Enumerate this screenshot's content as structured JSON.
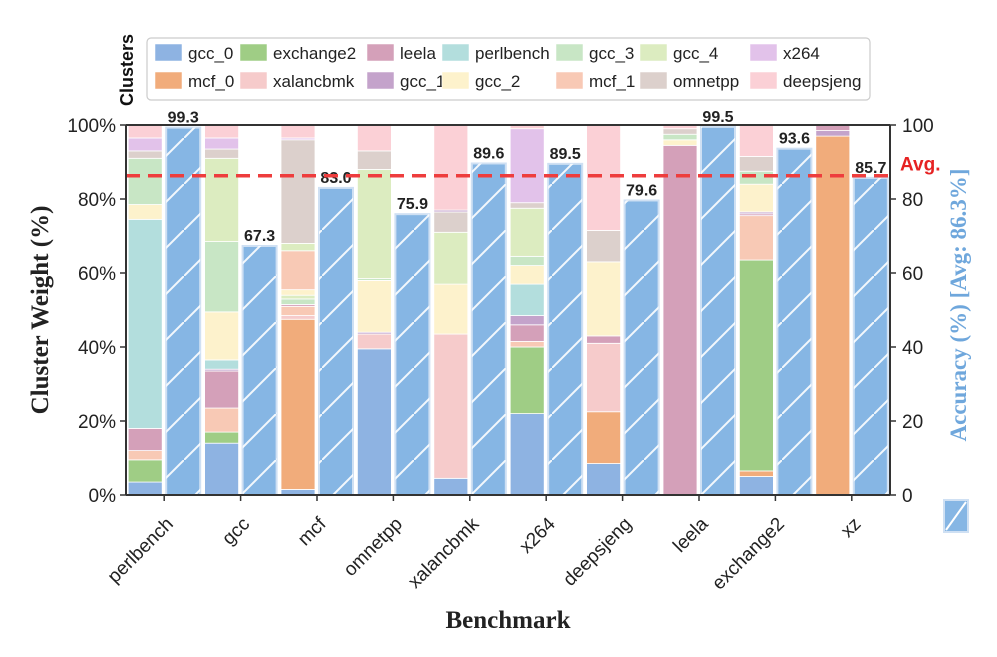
{
  "chart_data": {
    "type": "bar",
    "legend_title": "Clusters",
    "legend_position": "top",
    "xlabel": "Benchmark",
    "ylabel": "Cluster Weight (%)",
    "y2label": "Accuracy (%) [Avg: 86.3%]",
    "avg_label": "Avg.",
    "avg_value": 86.3,
    "ylim": [
      0,
      100
    ],
    "y2lim": [
      0,
      100
    ],
    "yticks": [
      "0%",
      "20%",
      "40%",
      "60%",
      "80%",
      "100%"
    ],
    "y2ticks": [
      "0",
      "20",
      "40",
      "60",
      "80",
      "100"
    ],
    "categories": [
      "perlbench",
      "gcc",
      "mcf",
      "omnetpp",
      "xalancbmk",
      "x264",
      "deepsjeng",
      "leela",
      "exchange2",
      "xz"
    ],
    "accuracy": [
      99.3,
      67.3,
      83.0,
      75.9,
      89.6,
      89.5,
      79.6,
      99.5,
      93.6,
      85.7
    ],
    "accuracy_labels": [
      "99.3",
      "67.3",
      "83.0",
      "75.9",
      "89.6",
      "89.5",
      "79.6",
      "99.5",
      "93.6",
      "85.7"
    ],
    "legend_items": [
      {
        "name": "gcc_0",
        "key": "gcc_0"
      },
      {
        "name": "exchange2",
        "key": "exchange2"
      },
      {
        "name": "leela",
        "key": "leela"
      },
      {
        "name": "perlbench",
        "key": "perlbench"
      },
      {
        "name": "gcc_3",
        "key": "gcc_3"
      },
      {
        "name": "gcc_4",
        "key": "gcc_4"
      },
      {
        "name": "x264",
        "key": "x264"
      },
      {
        "name": "mcf_0",
        "key": "mcf_0"
      },
      {
        "name": "xalancbmk",
        "key": "xalancbmk"
      },
      {
        "name": "gcc_1",
        "key": "gcc_1"
      },
      {
        "name": "gcc_2",
        "key": "gcc_2"
      },
      {
        "name": "mcf_1",
        "key": "mcf_1"
      },
      {
        "name": "omnetpp",
        "key": "omnetpp"
      },
      {
        "name": "deepsjeng",
        "key": "deepsjeng"
      }
    ],
    "colors": {
      "gcc_0": "#8eb3e2",
      "exchange2": "#9fcd85",
      "leela": "#d4a0b9",
      "perlbench": "#b3dedd",
      "gcc_3": "#c8e6c5",
      "gcc_4": "#dcecc0",
      "x264": "#e2c2ea",
      "mcf_0": "#f1ac7b",
      "xalancbmk": "#f6cbcb",
      "gcc_1": "#c4a3cb",
      "gcc_2": "#fdf2cc",
      "mcf_1": "#f8c9b5",
      "omnetpp": "#dcd0cc",
      "deepsjeng": "#fbd0d6",
      "accuracy": "#86b6e4",
      "avg_line": "#ee3d3d"
    },
    "series": [
      {
        "benchmark": "perlbench",
        "segments": [
          [
            "gcc_0",
            3.5
          ],
          [
            "exchange2",
            6
          ],
          [
            "mcf_1",
            2.5
          ],
          [
            "leela",
            6
          ],
          [
            "perlbench",
            56.5
          ],
          [
            "gcc_2",
            4
          ],
          [
            "gcc_3",
            12.5
          ],
          [
            "omnetpp",
            2
          ],
          [
            "x264",
            3.5
          ],
          [
            "deepsjeng",
            3.5
          ]
        ]
      },
      {
        "benchmark": "gcc",
        "segments": [
          [
            "gcc_0",
            14
          ],
          [
            "exchange2",
            3
          ],
          [
            "mcf_1",
            6.5
          ],
          [
            "leela",
            10
          ],
          [
            "gcc_1",
            0.5
          ],
          [
            "perlbench",
            2.5
          ],
          [
            "gcc_2",
            13
          ],
          [
            "gcc_3",
            19
          ],
          [
            "gcc_4",
            22.5
          ],
          [
            "omnetpp",
            2.5
          ],
          [
            "x264",
            3
          ],
          [
            "deepsjeng",
            3.5
          ]
        ]
      },
      {
        "benchmark": "mcf",
        "segments": [
          [
            "gcc_0",
            1.5
          ],
          [
            "mcf_0",
            46
          ],
          [
            "xalancbmk",
            1
          ],
          [
            "mcf_1",
            2.5
          ],
          [
            "leela",
            0.5
          ],
          [
            "gcc_3",
            1.5
          ],
          [
            "gcc_4",
            1
          ],
          [
            "gcc_2",
            1.5
          ],
          [
            "mcf_1",
            10.5
          ],
          [
            "gcc_4",
            2
          ],
          [
            "omnetpp",
            28
          ],
          [
            "x264",
            0.5
          ],
          [
            "deepsjeng",
            3.5
          ]
        ]
      },
      {
        "benchmark": "omnetpp",
        "segments": [
          [
            "gcc_0",
            39.5
          ],
          [
            "xalancbmk",
            4
          ],
          [
            "gcc_1",
            0.5
          ],
          [
            "gcc_2",
            14
          ],
          [
            "gcc_3",
            0.5
          ],
          [
            "gcc_4",
            29.5
          ],
          [
            "omnetpp",
            5
          ],
          [
            "deepsjeng",
            7
          ]
        ]
      },
      {
        "benchmark": "xalancbmk",
        "segments": [
          [
            "gcc_0",
            4.5
          ],
          [
            "xalancbmk",
            39
          ],
          [
            "gcc_2",
            13.5
          ],
          [
            "gcc_4",
            14
          ],
          [
            "omnetpp",
            5.5
          ],
          [
            "gcc_1",
            0.5
          ],
          [
            "deepsjeng",
            23
          ]
        ]
      },
      {
        "benchmark": "x264",
        "segments": [
          [
            "gcc_0",
            22
          ],
          [
            "exchange2",
            18
          ],
          [
            "mcf_1",
            1.5
          ],
          [
            "leela",
            4.5
          ],
          [
            "gcc_1",
            2.5
          ],
          [
            "perlbench",
            8.5
          ],
          [
            "gcc_2",
            5
          ],
          [
            "gcc_3",
            2.5
          ],
          [
            "gcc_4",
            13
          ],
          [
            "omnetpp",
            1.5
          ],
          [
            "x264",
            20
          ],
          [
            "deepsjeng",
            1
          ]
        ]
      },
      {
        "benchmark": "deepsjeng",
        "segments": [
          [
            "gcc_0",
            8.5
          ],
          [
            "mcf_0",
            14
          ],
          [
            "xalancbmk",
            18.5
          ],
          [
            "leela",
            2
          ],
          [
            "gcc_2",
            20
          ],
          [
            "omnetpp",
            8.5
          ],
          [
            "deepsjeng",
            28.5
          ]
        ]
      },
      {
        "benchmark": "leela",
        "segments": [
          [
            "leela",
            94.5
          ],
          [
            "gcc_2",
            1.5
          ],
          [
            "gcc_3",
            1.5
          ],
          [
            "omnetpp",
            1.5
          ],
          [
            "deepsjeng",
            1
          ]
        ]
      },
      {
        "benchmark": "exchange2",
        "segments": [
          [
            "gcc_0",
            5
          ],
          [
            "mcf_0",
            1.5
          ],
          [
            "exchange2",
            57
          ],
          [
            "mcf_1",
            12
          ],
          [
            "leela",
            0.5
          ],
          [
            "gcc_1",
            0.5
          ],
          [
            "gcc_2",
            7.5
          ],
          [
            "gcc_3",
            3.5
          ],
          [
            "omnetpp",
            4
          ],
          [
            "deepsjeng",
            8.5
          ]
        ]
      },
      {
        "benchmark": "xz",
        "segments": [
          [
            "mcf_0",
            97
          ],
          [
            "gcc_1",
            1.5
          ],
          [
            "leela",
            1.5
          ]
        ]
      }
    ]
  }
}
